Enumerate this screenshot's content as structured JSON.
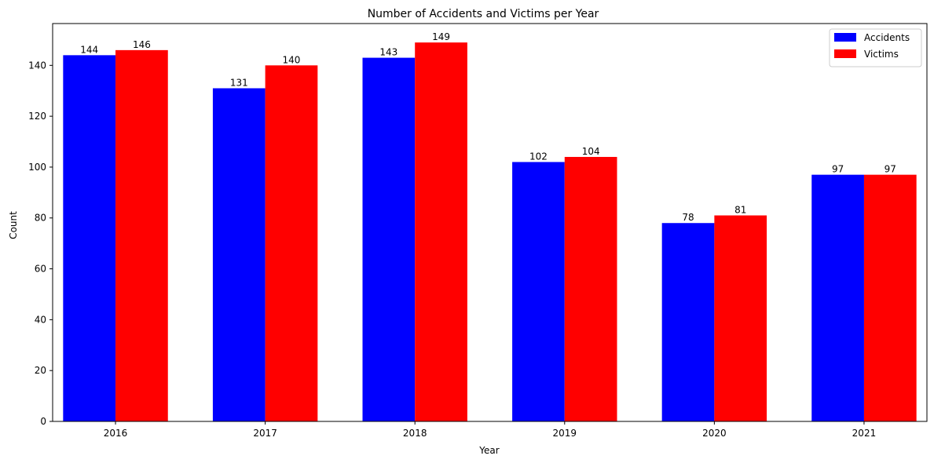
{
  "chart_data": {
    "type": "bar",
    "title": "Number of Accidents and Victims per Year",
    "xlabel": "Year",
    "ylabel": "Count",
    "categories": [
      "2016",
      "2017",
      "2018",
      "2019",
      "2020",
      "2021"
    ],
    "series": [
      {
        "name": "Accidents",
        "color": "#0000ff",
        "values": [
          144,
          131,
          143,
          102,
          78,
          97
        ]
      },
      {
        "name": "Victims",
        "color": "#ff0000",
        "values": [
          146,
          140,
          149,
          104,
          81,
          97
        ]
      }
    ],
    "ylim": [
      0,
      156.45
    ],
    "yticks": [
      0,
      20,
      40,
      60,
      80,
      100,
      120,
      140
    ],
    "grid": false,
    "legend_position": "top-right",
    "data_labels": true
  }
}
